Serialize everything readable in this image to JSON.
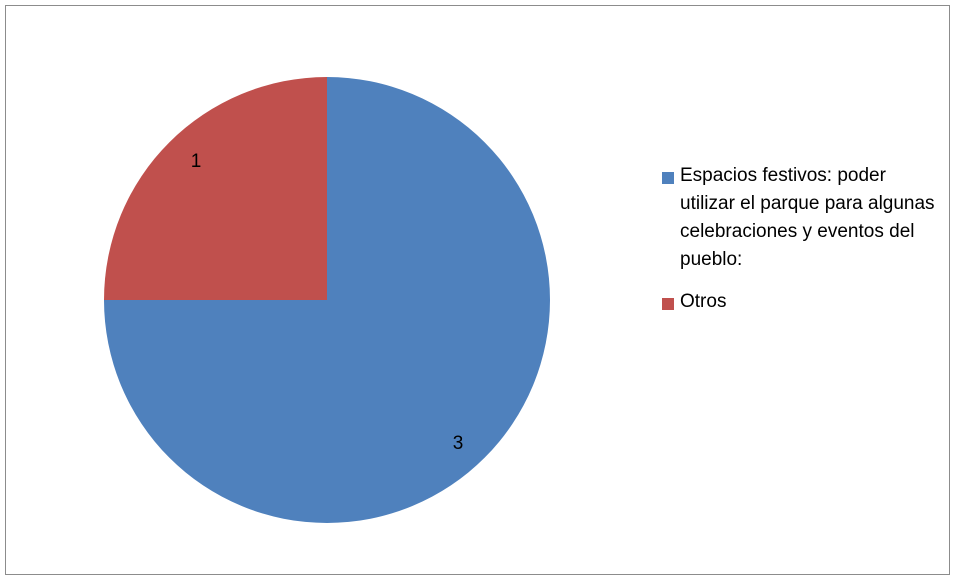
{
  "chart_data": {
    "type": "pie",
    "title": "",
    "categories": [
      "Espacios festivos: poder utilizar el parque para algunas celebraciones y eventos del pueblo:",
      "Otros"
    ],
    "values": [
      3,
      1
    ],
    "data_labels": [
      "3",
      "1"
    ],
    "colors": [
      "#4f81bd",
      "#c0504d"
    ],
    "legend_position": "right",
    "start_angle": "12 o'clock",
    "direction": "clockwise"
  }
}
